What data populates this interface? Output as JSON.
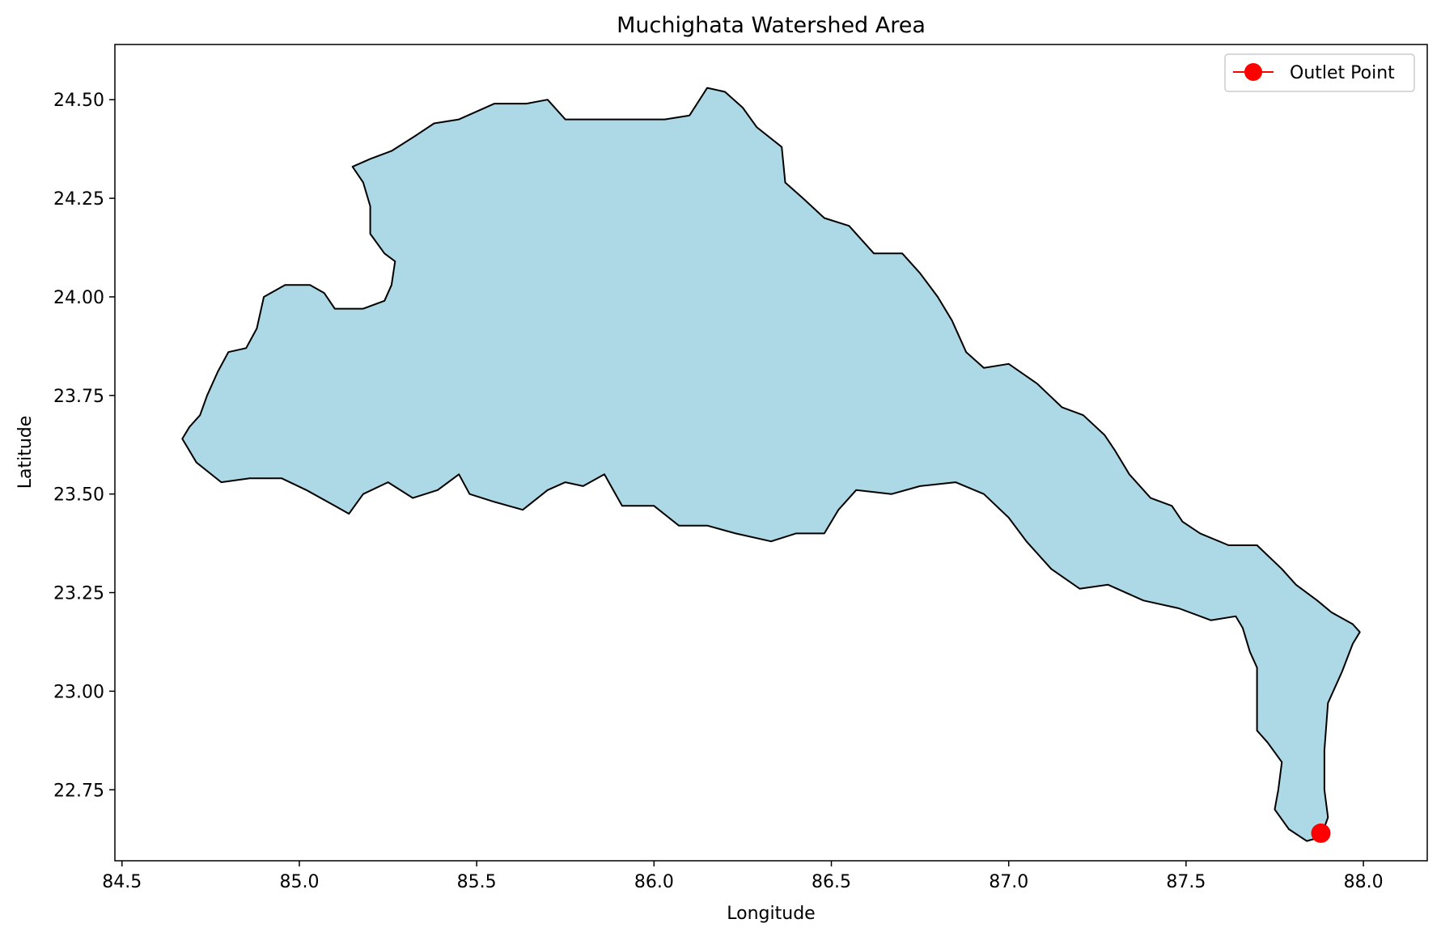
{
  "chart_data": {
    "type": "map",
    "title": "Muchighata Watershed Area",
    "xlabel": "Longitude",
    "ylabel": "Latitude",
    "xlim": [
      84.48,
      88.18
    ],
    "ylim": [
      22.57,
      24.64
    ],
    "xticks": [
      84.5,
      85.0,
      85.5,
      86.0,
      86.5,
      87.0,
      87.5,
      88.0
    ],
    "xtick_labels": [
      "84.5",
      "85.0",
      "85.5",
      "86.0",
      "86.5",
      "87.0",
      "87.5",
      "88.0"
    ],
    "yticks": [
      22.75,
      23.0,
      23.25,
      23.5,
      23.75,
      24.0,
      24.25,
      24.5
    ],
    "ytick_labels": [
      "22.75",
      "23.00",
      "23.25",
      "23.50",
      "23.75",
      "24.00",
      "24.25",
      "24.50"
    ],
    "grid": false,
    "legend": {
      "placement": "top-right",
      "entries": [
        "Outlet Point"
      ]
    },
    "series": [
      {
        "kind": "polygon",
        "fill_color": "#add8e6",
        "edge_color": "#000000",
        "points": [
          [
            84.67,
            23.64
          ],
          [
            84.71,
            23.58
          ],
          [
            84.78,
            23.53
          ],
          [
            84.86,
            23.54
          ],
          [
            84.95,
            23.54
          ],
          [
            85.02,
            23.51
          ],
          [
            85.1,
            23.47
          ],
          [
            85.14,
            23.45
          ],
          [
            85.18,
            23.5
          ],
          [
            85.25,
            23.53
          ],
          [
            85.32,
            23.49
          ],
          [
            85.39,
            23.51
          ],
          [
            85.45,
            23.55
          ],
          [
            85.48,
            23.5
          ],
          [
            85.55,
            23.48
          ],
          [
            85.63,
            23.46
          ],
          [
            85.7,
            23.51
          ],
          [
            85.75,
            23.53
          ],
          [
            85.8,
            23.52
          ],
          [
            85.86,
            23.55
          ],
          [
            85.91,
            23.47
          ],
          [
            86.0,
            23.47
          ],
          [
            86.07,
            23.42
          ],
          [
            86.15,
            23.42
          ],
          [
            86.23,
            23.4
          ],
          [
            86.33,
            23.38
          ],
          [
            86.4,
            23.4
          ],
          [
            86.48,
            23.4
          ],
          [
            86.52,
            23.46
          ],
          [
            86.57,
            23.51
          ],
          [
            86.67,
            23.5
          ],
          [
            86.75,
            23.52
          ],
          [
            86.85,
            23.53
          ],
          [
            86.93,
            23.5
          ],
          [
            87.0,
            23.44
          ],
          [
            87.05,
            23.38
          ],
          [
            87.12,
            23.31
          ],
          [
            87.2,
            23.26
          ],
          [
            87.28,
            23.27
          ],
          [
            87.38,
            23.23
          ],
          [
            87.48,
            23.21
          ],
          [
            87.57,
            23.18
          ],
          [
            87.64,
            23.19
          ],
          [
            87.66,
            23.16
          ],
          [
            87.68,
            23.1
          ],
          [
            87.7,
            23.06
          ],
          [
            87.7,
            22.9
          ],
          [
            87.73,
            22.87
          ],
          [
            87.77,
            22.82
          ],
          [
            87.76,
            22.75
          ],
          [
            87.75,
            22.7
          ],
          [
            87.79,
            22.65
          ],
          [
            87.84,
            22.62
          ],
          [
            87.88,
            22.63
          ],
          [
            87.9,
            22.68
          ],
          [
            87.89,
            22.75
          ],
          [
            87.89,
            22.85
          ],
          [
            87.9,
            22.97
          ],
          [
            87.94,
            23.05
          ],
          [
            87.97,
            23.12
          ],
          [
            87.99,
            23.15
          ],
          [
            87.97,
            23.17
          ],
          [
            87.91,
            23.2
          ],
          [
            87.87,
            23.23
          ],
          [
            87.81,
            23.27
          ],
          [
            87.77,
            23.31
          ],
          [
            87.7,
            23.37
          ],
          [
            87.62,
            23.37
          ],
          [
            87.54,
            23.4
          ],
          [
            87.49,
            23.43
          ],
          [
            87.46,
            23.47
          ],
          [
            87.4,
            23.49
          ],
          [
            87.34,
            23.55
          ],
          [
            87.3,
            23.61
          ],
          [
            87.27,
            23.65
          ],
          [
            87.21,
            23.7
          ],
          [
            87.15,
            23.72
          ],
          [
            87.08,
            23.78
          ],
          [
            87.0,
            23.83
          ],
          [
            86.93,
            23.82
          ],
          [
            86.88,
            23.86
          ],
          [
            86.84,
            23.94
          ],
          [
            86.8,
            24.0
          ],
          [
            86.75,
            24.06
          ],
          [
            86.7,
            24.11
          ],
          [
            86.62,
            24.11
          ],
          [
            86.55,
            24.18
          ],
          [
            86.48,
            24.2
          ],
          [
            86.42,
            24.25
          ],
          [
            86.37,
            24.29
          ],
          [
            86.36,
            24.38
          ],
          [
            86.29,
            24.43
          ],
          [
            86.25,
            24.48
          ],
          [
            86.2,
            24.52
          ],
          [
            86.15,
            24.53
          ],
          [
            86.1,
            24.46
          ],
          [
            86.03,
            24.45
          ],
          [
            85.92,
            24.45
          ],
          [
            85.84,
            24.45
          ],
          [
            85.75,
            24.45
          ],
          [
            85.7,
            24.5
          ],
          [
            85.64,
            24.49
          ],
          [
            85.55,
            24.49
          ],
          [
            85.45,
            24.45
          ],
          [
            85.38,
            24.44
          ],
          [
            85.33,
            24.41
          ],
          [
            85.26,
            24.37
          ],
          [
            85.2,
            24.35
          ],
          [
            85.15,
            24.33
          ],
          [
            85.18,
            24.29
          ],
          [
            85.2,
            24.23
          ],
          [
            85.2,
            24.16
          ],
          [
            85.24,
            24.11
          ],
          [
            85.27,
            24.09
          ],
          [
            85.26,
            24.03
          ],
          [
            85.24,
            23.99
          ],
          [
            85.18,
            23.97
          ],
          [
            85.1,
            23.97
          ],
          [
            85.07,
            24.01
          ],
          [
            85.03,
            24.03
          ],
          [
            84.96,
            24.03
          ],
          [
            84.9,
            24.0
          ],
          [
            84.88,
            23.92
          ],
          [
            84.85,
            23.87
          ],
          [
            84.8,
            23.86
          ],
          [
            84.77,
            23.81
          ],
          [
            84.74,
            23.75
          ],
          [
            84.72,
            23.7
          ],
          [
            84.69,
            23.67
          ],
          [
            84.67,
            23.64
          ]
        ]
      },
      {
        "kind": "point",
        "name": "Outlet Point",
        "color": "#ff0000",
        "points": [
          [
            87.88,
            22.64
          ]
        ]
      }
    ]
  }
}
